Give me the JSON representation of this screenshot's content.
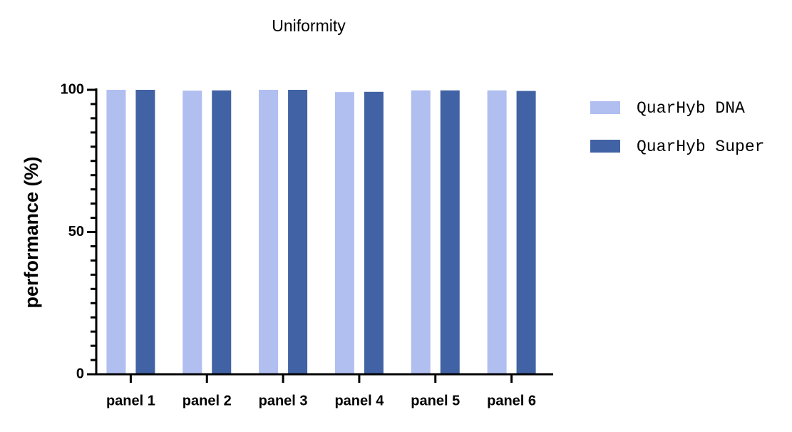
{
  "chart_data": {
    "type": "bar",
    "title": "Uniformity",
    "y_label": "performance (%)",
    "categories": [
      "panel 1",
      "panel 2",
      "panel 3",
      "panel 4",
      "panel 5",
      "panel 6"
    ],
    "series": [
      {
        "name": "QuarHyb DNA",
        "color": "#b0bef0",
        "values": [
          100,
          99.7,
          100,
          99.2,
          99.8,
          99.8
        ]
      },
      {
        "name": "QuarHyb Super",
        "color": "#4162a4",
        "values": [
          100,
          99.8,
          100,
          99.3,
          99.8,
          99.6
        ]
      }
    ],
    "ylim": [
      0,
      100
    ],
    "yticks": [
      0,
      50,
      100
    ],
    "minor_yticks": [
      5,
      10,
      15,
      20,
      25,
      30,
      35,
      40,
      45,
      55,
      60,
      65,
      70,
      75,
      80,
      85,
      90,
      95
    ],
    "legend": "right"
  }
}
